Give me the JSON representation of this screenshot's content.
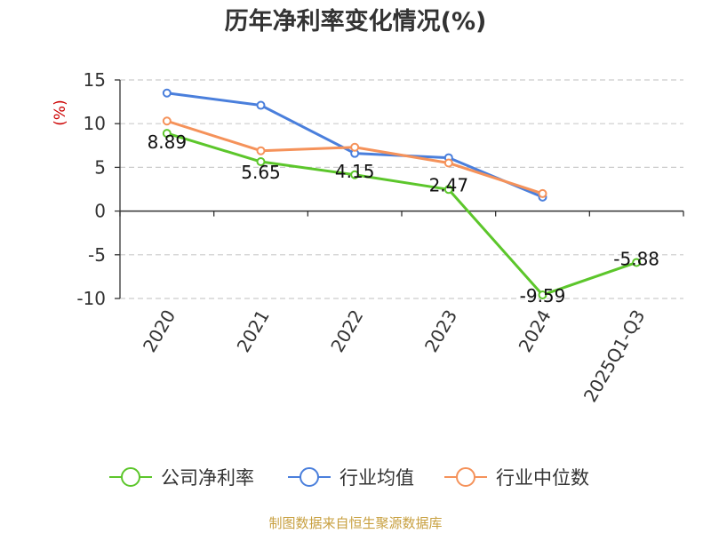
{
  "chart_data": {
    "type": "line",
    "title": "历年净利率变化情况(%)",
    "y_unit_label": "(%)",
    "categories": [
      "2020",
      "2021",
      "2022",
      "2023",
      "2024",
      "2025Q1-Q3"
    ],
    "y_ticks": [
      "15",
      "10",
      "5",
      "0",
      "-5",
      "-10"
    ],
    "ylim": [
      -10,
      15
    ],
    "grid": true,
    "legend_position": "bottom",
    "series": [
      {
        "name": "公司净利率",
        "color": "#5cc62b",
        "values": [
          8.89,
          5.65,
          4.15,
          2.47,
          -9.59,
          -5.88
        ],
        "data_labels": [
          "8.89",
          "5.65",
          "4.15",
          "2.47",
          "-9.59",
          "-5.88"
        ]
      },
      {
        "name": "行业均值",
        "color": "#4a7fdc",
        "values": [
          13.5,
          12.1,
          6.6,
          6.1,
          1.6,
          null
        ]
      },
      {
        "name": "行业中位数",
        "color": "#f5925a",
        "values": [
          10.3,
          6.9,
          7.3,
          5.5,
          2.0,
          null
        ]
      }
    ]
  },
  "source": "制图数据来自恒生聚源数据库"
}
